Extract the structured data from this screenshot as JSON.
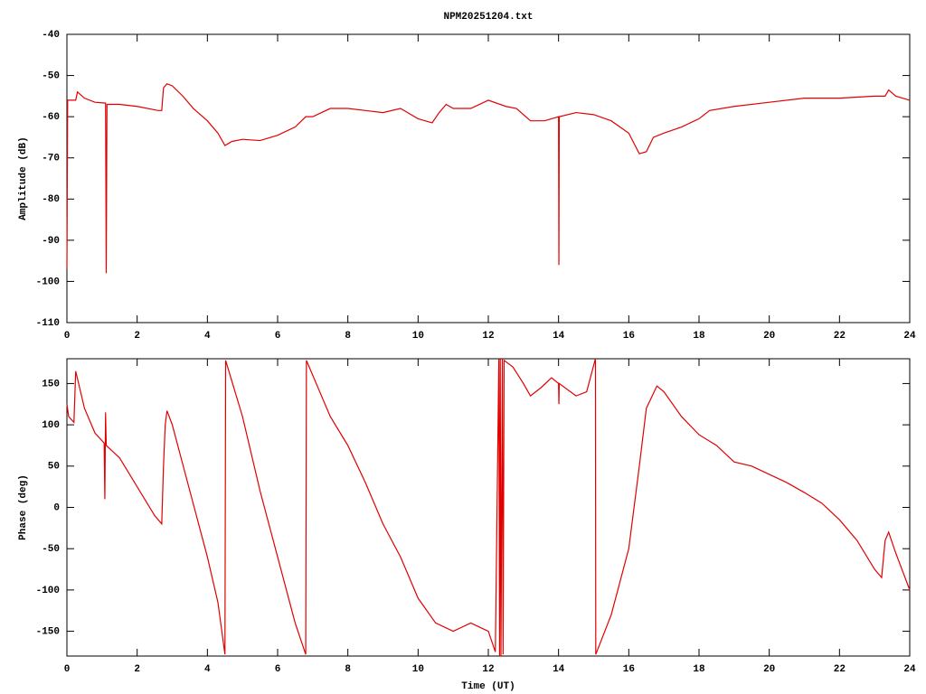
{
  "chart_data": [
    {
      "type": "line",
      "title": "NPM20251204.txt",
      "ylabel": "Amplitude (dB)",
      "color": "#e00000",
      "xlim": [
        0,
        24
      ],
      "xticks": [
        0,
        2,
        4,
        6,
        8,
        10,
        12,
        14,
        16,
        18,
        20,
        22,
        24
      ],
      "ylim": [
        -110,
        -40
      ],
      "yticks": [
        -110,
        -100,
        -90,
        -80,
        -70,
        -60,
        -50,
        -40
      ],
      "x": [
        0,
        0.02,
        0.25,
        0.3,
        0.5,
        0.8,
        1.1,
        1.12,
        1.14,
        1.5,
        2,
        2.6,
        2.7,
        2.75,
        2.85,
        3.0,
        3.3,
        3.6,
        4.0,
        4.3,
        4.5,
        4.7,
        5.0,
        5.5,
        6,
        6.5,
        6.8,
        7.0,
        7.5,
        8,
        8.5,
        9,
        9.5,
        10,
        10.4,
        10.6,
        10.8,
        11,
        11.5,
        12,
        12.5,
        12.8,
        13.2,
        13.6,
        14,
        14.01,
        14.02,
        14.5,
        15,
        15.5,
        16,
        16.3,
        16.5,
        16.7,
        17,
        17.5,
        18,
        18.3,
        19,
        20,
        21,
        22,
        23,
        23.3,
        23.4,
        23.6,
        24
      ],
      "values": [
        -97,
        -56,
        -56,
        -54,
        -55.5,
        -56.5,
        -56.7,
        -98,
        -57,
        -57,
        -57.5,
        -58.5,
        -58.5,
        -53,
        -52,
        -52.5,
        -55,
        -58,
        -61,
        -64,
        -67,
        -66,
        -65.5,
        -65.8,
        -64.5,
        -62.5,
        -60,
        -60,
        -58,
        -58,
        -58.5,
        -59,
        -58,
        -60.5,
        -61.5,
        -59,
        -57,
        -58,
        -58,
        -56,
        -57.5,
        -58,
        -61,
        -61,
        -60,
        -96,
        -60,
        -59,
        -59.5,
        -61,
        -64,
        -69,
        -68.5,
        -65,
        -64,
        -62.5,
        -60.5,
        -58.5,
        -57.5,
        -56.5,
        -55.5,
        -55.5,
        -55,
        -55,
        -53.5,
        -55,
        -56
      ]
    },
    {
      "type": "line",
      "ylabel": "Phase (deg)",
      "xlabel": "Time (UT)",
      "color": "#e00000",
      "xlim": [
        0,
        24
      ],
      "xticks": [
        0,
        2,
        4,
        6,
        8,
        10,
        12,
        14,
        16,
        18,
        20,
        22,
        24
      ],
      "ylim": [
        -180,
        180
      ],
      "yticks": [
        -150,
        -100,
        -50,
        0,
        50,
        100,
        150
      ],
      "x": [
        0,
        0.05,
        0.2,
        0.25,
        0.5,
        0.8,
        1.06,
        1.08,
        1.1,
        1.12,
        1.5,
        2.0,
        2.5,
        2.7,
        2.75,
        2.8,
        2.85,
        3.0,
        3.5,
        4.0,
        4.3,
        4.5,
        4.52,
        5,
        5.5,
        6,
        6.5,
        6.8,
        6.82,
        7.2,
        7.5,
        8,
        8.5,
        9,
        9.5,
        10,
        10.5,
        11,
        11.5,
        12,
        12.2,
        12.3,
        12.32,
        12.34,
        12.36,
        12.4,
        12.42,
        12.45,
        12.7,
        13,
        13.2,
        13.5,
        13.8,
        14,
        14.01,
        14.02,
        14.5,
        14.8,
        15.05,
        15.06,
        15.5,
        16,
        16.3,
        16.5,
        16.8,
        17,
        17.5,
        18,
        18.5,
        19,
        19.5,
        20,
        20.5,
        21,
        21.5,
        22,
        22.5,
        23,
        23.2,
        23.3,
        23.4,
        23.6,
        24
      ],
      "values": [
        125,
        110,
        103,
        165,
        120,
        90,
        78,
        10,
        115,
        75,
        60,
        25,
        -10,
        -20,
        50,
        100,
        117,
        100,
        20,
        -60,
        -115,
        -178,
        178,
        110,
        20,
        -60,
        -140,
        -178,
        178,
        140,
        110,
        75,
        30,
        -20,
        -60,
        -110,
        -140,
        -150,
        -140,
        -150,
        -175,
        180,
        -180,
        180,
        -180,
        180,
        -178,
        178,
        170,
        150,
        135,
        145,
        157,
        150,
        125,
        150,
        135,
        140,
        180,
        -178,
        -130,
        -50,
        50,
        120,
        147,
        140,
        110,
        88,
        75,
        55,
        50,
        40,
        30,
        18,
        5,
        -15,
        -40,
        -75,
        -85,
        -40,
        -30,
        -55,
        -100
      ]
    }
  ]
}
